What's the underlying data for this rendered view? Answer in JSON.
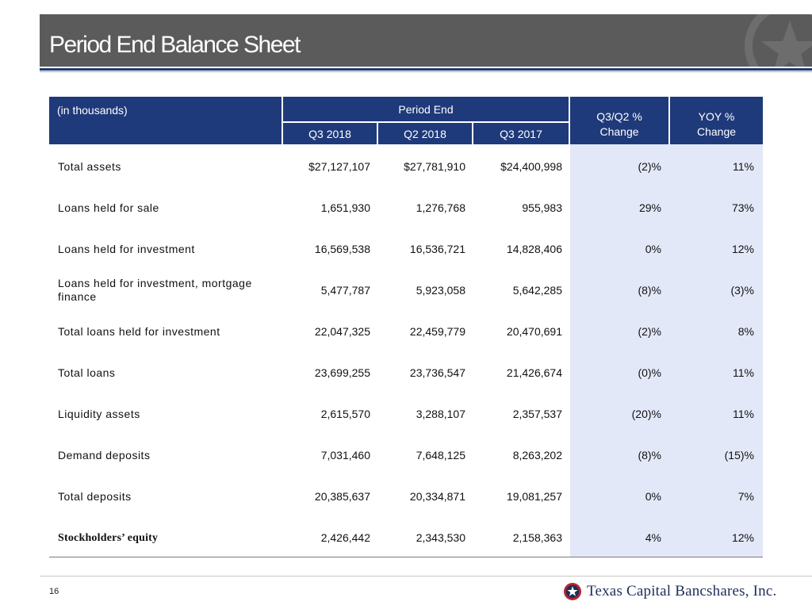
{
  "slide": {
    "title": "Period End Balance Sheet",
    "page_number": "16"
  },
  "table": {
    "unit_label": "(in thousands)",
    "group_header": "Period End",
    "columns": [
      "Q3 2018",
      "Q2 2018",
      "Q3 2017"
    ],
    "qq_header_line1": "Q3/Q2 %",
    "qq_header_line2": "Change",
    "yoy_header_line1": "YOY %",
    "yoy_header_line2": "Change",
    "rows": [
      {
        "label": "Total assets",
        "q3_2018": "$27,127,107",
        "q2_2018": "$27,781,910",
        "q3_2017": "$24,400,998",
        "qq_change": "(2)%",
        "yoy_change": "11%"
      },
      {
        "label": "Loans held for sale",
        "q3_2018": "1,651,930",
        "q2_2018": "1,276,768",
        "q3_2017": "955,983",
        "qq_change": "29%",
        "yoy_change": "73%"
      },
      {
        "label": "Loans held for investment",
        "q3_2018": "16,569,538",
        "q2_2018": "16,536,721",
        "q3_2017": "14,828,406",
        "qq_change": "0%",
        "yoy_change": "12%"
      },
      {
        "label": "Loans held for investment, mortgage finance",
        "q3_2018": "5,477,787",
        "q2_2018": "5,923,058",
        "q3_2017": "5,642,285",
        "qq_change": "(8)%",
        "yoy_change": "(3)%"
      },
      {
        "label": "Total loans held for investment",
        "q3_2018": "22,047,325",
        "q2_2018": "22,459,779",
        "q3_2017": "20,470,691",
        "qq_change": "(2)%",
        "yoy_change": "8%"
      },
      {
        "label": "Total loans",
        "q3_2018": "23,699,255",
        "q2_2018": "23,736,547",
        "q3_2017": "21,426,674",
        "qq_change": "(0)%",
        "yoy_change": "11%"
      },
      {
        "label": "Liquidity assets",
        "q3_2018": "2,615,570",
        "q2_2018": "3,288,107",
        "q3_2017": "2,357,537",
        "qq_change": "(20)%",
        "yoy_change": "11%"
      },
      {
        "label": "Demand deposits",
        "q3_2018": "7,031,460",
        "q2_2018": "7,648,125",
        "q3_2017": "8,263,202",
        "qq_change": "(8)%",
        "yoy_change": "(15)%"
      },
      {
        "label": "Total deposits",
        "q3_2018": "20,385,637",
        "q2_2018": "20,334,871",
        "q3_2017": "19,081,257",
        "qq_change": "0%",
        "yoy_change": "7%"
      },
      {
        "label": "Stockholders’ equity",
        "q3_2018": "2,426,442",
        "q2_2018": "2,343,530",
        "q3_2017": "2,158,363",
        "qq_change": "4%",
        "yoy_change": "12%"
      }
    ]
  },
  "logo": {
    "text": "Texas Capital Bancshares, Inc.",
    "icon": "star-seal-icon"
  },
  "colors": {
    "header_blue": "#1f3a7a",
    "title_gray": "#5b5b5b",
    "shade": "#e3e8f8",
    "logo_red": "#b5262d"
  }
}
